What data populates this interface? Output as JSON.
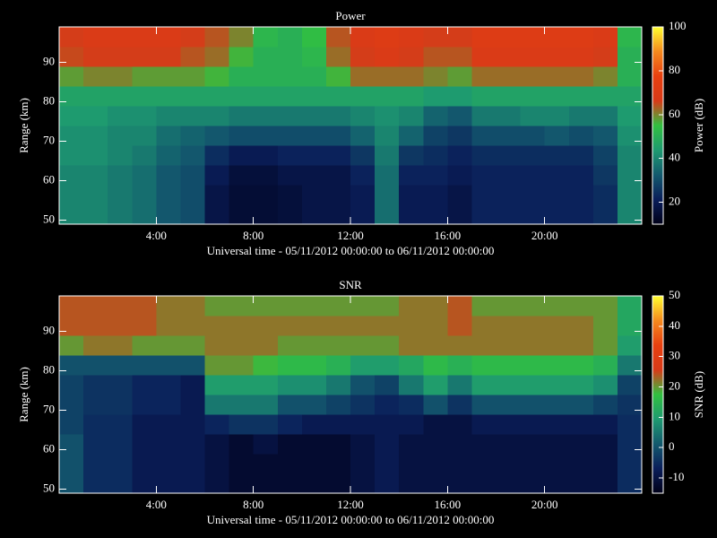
{
  "chart_data": [
    {
      "type": "heatmap",
      "title": "Power",
      "xlabel": "Universal time - 05/11/2012 00:00:00 to 06/11/2012 00:00:00",
      "ylabel": "Range (km)",
      "zlabel": "Power (dB)",
      "xlim": [
        0,
        24
      ],
      "ylim": [
        49,
        99
      ],
      "zlim": [
        10,
        100
      ],
      "xticks": [
        {
          "value": 4,
          "label": "4:00"
        },
        {
          "value": 8,
          "label": "8:00"
        },
        {
          "value": 12,
          "label": "12:00"
        },
        {
          "value": 16,
          "label": "16:00"
        },
        {
          "value": 20,
          "label": "20:00"
        }
      ],
      "yticks": [
        50,
        60,
        70,
        80,
        90
      ],
      "zticks": [
        20,
        40,
        60,
        80,
        100
      ],
      "colormap": [
        "#000018",
        "#0a1e5a",
        "#135a6e",
        "#1e9a70",
        "#32c040",
        "#d83a18",
        "#e84010",
        "#f58a1e",
        "#ffff30"
      ],
      "xbins": [
        0,
        1,
        2,
        3,
        4,
        5,
        6,
        7,
        8,
        9,
        10,
        11,
        12,
        13,
        14,
        15,
        16,
        17,
        18,
        19,
        20,
        21,
        22,
        23,
        24
      ],
      "ybins": [
        49,
        54,
        59,
        64,
        69,
        74,
        79,
        84,
        89,
        94,
        99
      ],
      "values": [
        [
          40,
          40,
          38,
          36,
          32,
          30,
          18,
          15,
          15,
          16,
          18,
          18,
          20,
          36,
          20,
          20,
          18,
          22,
          22,
          22,
          22,
          22,
          24,
          40
        ],
        [
          40,
          40,
          38,
          36,
          32,
          30,
          18,
          15,
          15,
          16,
          18,
          18,
          20,
          36,
          20,
          20,
          18,
          22,
          22,
          22,
          22,
          22,
          24,
          40
        ],
        [
          40,
          40,
          38,
          36,
          32,
          30,
          20,
          16,
          16,
          18,
          18,
          18,
          22,
          36,
          22,
          22,
          20,
          22,
          22,
          22,
          22,
          22,
          26,
          40
        ],
        [
          42,
          42,
          40,
          38,
          34,
          32,
          24,
          20,
          20,
          22,
          22,
          22,
          26,
          38,
          26,
          24,
          22,
          24,
          24,
          24,
          24,
          24,
          28,
          40
        ],
        [
          42,
          42,
          40,
          40,
          36,
          34,
          32,
          30,
          30,
          30,
          30,
          30,
          34,
          40,
          34,
          28,
          26,
          30,
          30,
          30,
          32,
          30,
          32,
          42
        ],
        [
          44,
          44,
          42,
          42,
          40,
          40,
          40,
          38,
          38,
          38,
          38,
          38,
          40,
          42,
          40,
          34,
          32,
          38,
          38,
          40,
          40,
          38,
          38,
          44
        ],
        [
          46,
          46,
          46,
          46,
          46,
          46,
          46,
          46,
          46,
          46,
          46,
          46,
          46,
          46,
          46,
          44,
          44,
          46,
          46,
          46,
          46,
          46,
          46,
          46
        ],
        [
          58,
          60,
          60,
          58,
          58,
          58,
          56,
          50,
          50,
          50,
          50,
          56,
          62,
          62,
          62,
          60,
          58,
          62,
          62,
          62,
          62,
          62,
          60,
          50
        ],
        [
          65,
          66,
          66,
          66,
          66,
          64,
          62,
          56,
          50,
          50,
          52,
          62,
          66,
          68,
          66,
          64,
          64,
          68,
          68,
          68,
          68,
          68,
          66,
          50
        ],
        [
          66,
          68,
          68,
          68,
          68,
          66,
          64,
          60,
          52,
          50,
          54,
          64,
          68,
          70,
          68,
          66,
          66,
          70,
          70,
          70,
          70,
          70,
          68,
          52
        ]
      ]
    },
    {
      "type": "heatmap",
      "title": "SNR",
      "xlabel": "Universal time - 05/11/2012 00:00:00 to 06/11/2012 00:00:00",
      "ylabel": "Range (km)",
      "zlabel": "SNR (dB)",
      "xlim": [
        0,
        24
      ],
      "ylim": [
        49,
        99
      ],
      "zlim": [
        -15,
        50
      ],
      "xticks": [
        {
          "value": 4,
          "label": "4:00"
        },
        {
          "value": 8,
          "label": "8:00"
        },
        {
          "value": 12,
          "label": "12:00"
        },
        {
          "value": 16,
          "label": "16:00"
        },
        {
          "value": 20,
          "label": "20:00"
        }
      ],
      "yticks": [
        50,
        60,
        70,
        80,
        90
      ],
      "zticks": [
        -10,
        0,
        10,
        20,
        30,
        40,
        50
      ],
      "colormap": [
        "#000018",
        "#0a1e5a",
        "#135a6e",
        "#1e9a70",
        "#32c040",
        "#d83a18",
        "#e84010",
        "#f58a1e",
        "#ffff30"
      ],
      "xbins": [
        0,
        1,
        2,
        3,
        4,
        5,
        6,
        7,
        8,
        9,
        10,
        11,
        12,
        13,
        14,
        15,
        16,
        17,
        18,
        19,
        20,
        21,
        22,
        23,
        24
      ],
      "ybins": [
        49,
        54,
        59,
        64,
        69,
        74,
        79,
        84,
        89,
        94,
        99
      ],
      "values": [
        [
          0,
          -5,
          -5,
          -8,
          -8,
          -8,
          -10,
          -12,
          -12,
          -12,
          -12,
          -12,
          -10,
          -8,
          -10,
          -10,
          -10,
          -10,
          -10,
          -10,
          -10,
          -10,
          -10,
          -5
        ],
        [
          0,
          -5,
          -5,
          -8,
          -8,
          -8,
          -10,
          -12,
          -12,
          -12,
          -12,
          -12,
          -10,
          -8,
          -10,
          -10,
          -10,
          -10,
          -10,
          -10,
          -10,
          -10,
          -10,
          -5
        ],
        [
          0,
          -5,
          -5,
          -8,
          -8,
          -8,
          -10,
          -12,
          -10,
          -12,
          -12,
          -12,
          -10,
          -8,
          -10,
          -10,
          -10,
          -10,
          -10,
          -10,
          -10,
          -10,
          -10,
          -5
        ],
        [
          -2,
          -5,
          -5,
          -8,
          -8,
          -8,
          -6,
          -4,
          -4,
          -6,
          -8,
          -8,
          -8,
          -8,
          -8,
          -10,
          -10,
          -8,
          -8,
          -8,
          -8,
          -8,
          -8,
          -5
        ],
        [
          -2,
          -4,
          -4,
          -6,
          -6,
          -8,
          5,
          5,
          5,
          0,
          0,
          -2,
          -4,
          -6,
          -5,
          0,
          -4,
          0,
          0,
          0,
          0,
          0,
          -2,
          -4
        ],
        [
          -2,
          -4,
          -4,
          -6,
          -6,
          -8,
          10,
          10,
          10,
          8,
          8,
          5,
          0,
          -2,
          5,
          10,
          5,
          10,
          10,
          10,
          10,
          10,
          8,
          -2
        ],
        [
          0,
          0,
          0,
          0,
          0,
          0,
          20,
          20,
          18,
          16,
          16,
          14,
          10,
          10,
          12,
          16,
          14,
          16,
          16,
          16,
          16,
          16,
          14,
          5
        ],
        [
          20,
          22,
          22,
          20,
          20,
          20,
          22,
          22,
          22,
          20,
          20,
          20,
          20,
          20,
          22,
          22,
          22,
          22,
          22,
          22,
          22,
          22,
          20,
          10
        ],
        [
          24,
          24,
          24,
          24,
          22,
          22,
          22,
          22,
          22,
          22,
          22,
          22,
          22,
          22,
          22,
          22,
          24,
          22,
          22,
          22,
          22,
          22,
          20,
          12
        ],
        [
          24,
          24,
          24,
          24,
          22,
          22,
          20,
          20,
          20,
          20,
          20,
          20,
          20,
          20,
          22,
          22,
          24,
          20,
          20,
          20,
          20,
          20,
          20,
          12
        ]
      ]
    }
  ]
}
